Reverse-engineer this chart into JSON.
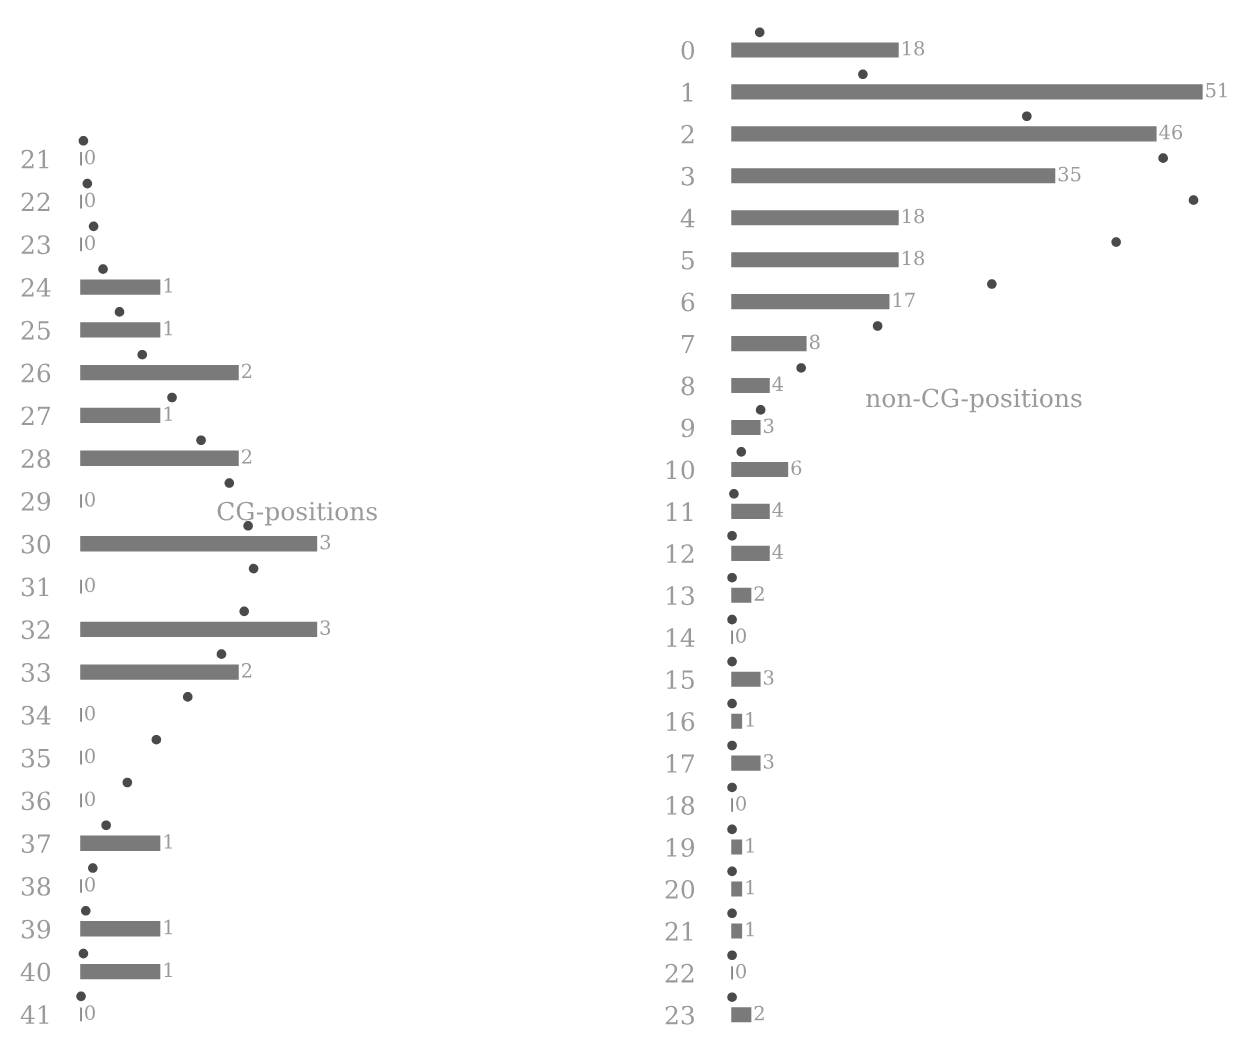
{
  "chart_data": [
    {
      "type": "bar",
      "orientation": "horizontal",
      "categories": [
        "21",
        "22",
        "23",
        "24",
        "25",
        "26",
        "27",
        "28",
        "29",
        "30",
        "31",
        "32",
        "33",
        "34",
        "35",
        "36",
        "37",
        "38",
        "39",
        "40",
        "41"
      ],
      "tick_labels": "y",
      "annotations": [
        "CG-positions"
      ],
      "series": [
        {
          "color": "#7a7a7a",
          "values": [
            0,
            0,
            0,
            1,
            1,
            2,
            1,
            2,
            0,
            3,
            0,
            3,
            2,
            0,
            0,
            0,
            1,
            0,
            1,
            1,
            0
          ],
          "value_labels": [
            "0",
            "0",
            "0",
            "1",
            "1",
            "2",
            "1",
            "2",
            "0",
            "3",
            "0",
            "3",
            "2",
            "0",
            "0",
            "0",
            "1",
            "0",
            "1",
            "1",
            "0"
          ]
        },
        {
          "type": "scatter",
          "color": "#4a4a4a",
          "marker": "circle",
          "values": [
            0.03,
            0.08,
            0.16,
            0.28,
            0.49,
            0.78,
            1.16,
            1.53,
            1.89,
            2.13,
            2.2,
            2.08,
            1.79,
            1.36,
            0.96,
            0.59,
            0.32,
            0.15,
            0.06,
            0.03,
            0
          ]
        }
      ]
    },
    {
      "type": "bar",
      "orientation": "horizontal",
      "categories": [
        "0",
        "1",
        "2",
        "3",
        "4",
        "5",
        "6",
        "7",
        "8",
        "9",
        "10",
        "11",
        "12",
        "13",
        "14",
        "15",
        "16",
        "17",
        "18",
        "19",
        "20",
        "21",
        "22",
        "23"
      ],
      "tick_labels": "y",
      "annotations": [
        "non-CG-positions"
      ],
      "series": [
        {
          "color": "#7a7a7a",
          "values": [
            18,
            51,
            46,
            35,
            18,
            18,
            17,
            8,
            4,
            3,
            6,
            4,
            4,
            2,
            0,
            3,
            1,
            3,
            0,
            1,
            1,
            1,
            0,
            2
          ],
          "value_labels": [
            "18",
            "51",
            "46",
            "35",
            "18",
            "18",
            "17",
            "8",
            "4",
            "3",
            "6",
            "4",
            "4",
            "2",
            "0",
            "3",
            "1",
            "3",
            "0",
            "1",
            "1",
            "1",
            "0",
            "2"
          ]
        },
        {
          "type": "scatter",
          "color": "#4a4a4a",
          "marker": "circle",
          "values": [
            3,
            14.2,
            32,
            46.8,
            50.1,
            41.7,
            28.2,
            15.8,
            7.5,
            3.1,
            1,
            0.2,
            0,
            0,
            0,
            0,
            0,
            0,
            0,
            0,
            0,
            0,
            0,
            0
          ]
        }
      ]
    }
  ]
}
